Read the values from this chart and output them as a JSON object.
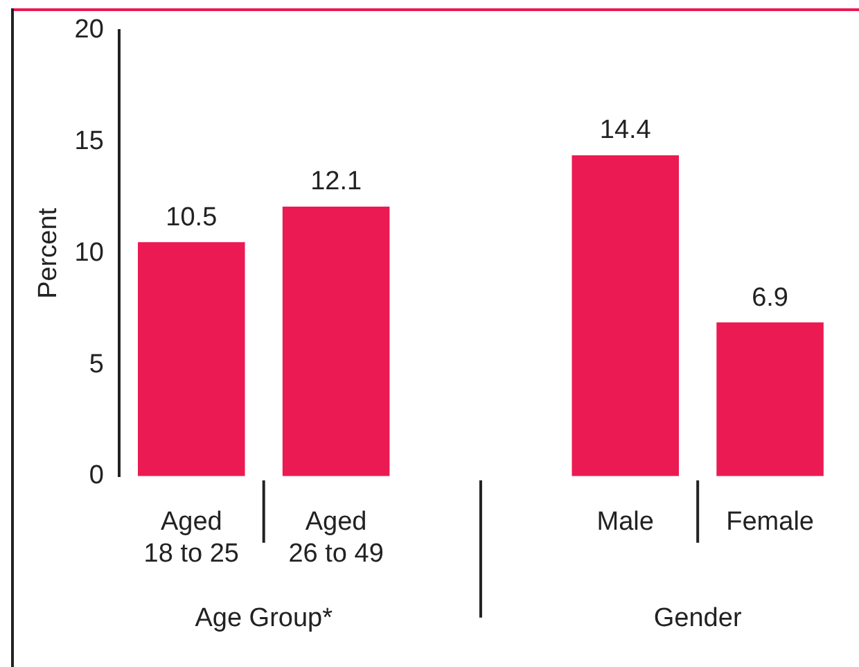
{
  "chart_data": {
    "type": "bar",
    "ylabel": "Percent",
    "categories": [
      "Aged\n18 to 25",
      "Aged\n26 to 49",
      null,
      "Male",
      "Female"
    ],
    "values": [
      10.5,
      12.1,
      null,
      14.4,
      6.9
    ],
    "color": "#ec1a52",
    "ylim": [
      0,
      20
    ],
    "yticks": [
      0,
      5,
      10,
      15,
      20
    ],
    "grid": false,
    "legend": false,
    "data_labels": true,
    "annotations": [
      "Age Group*",
      "Gender"
    ]
  }
}
